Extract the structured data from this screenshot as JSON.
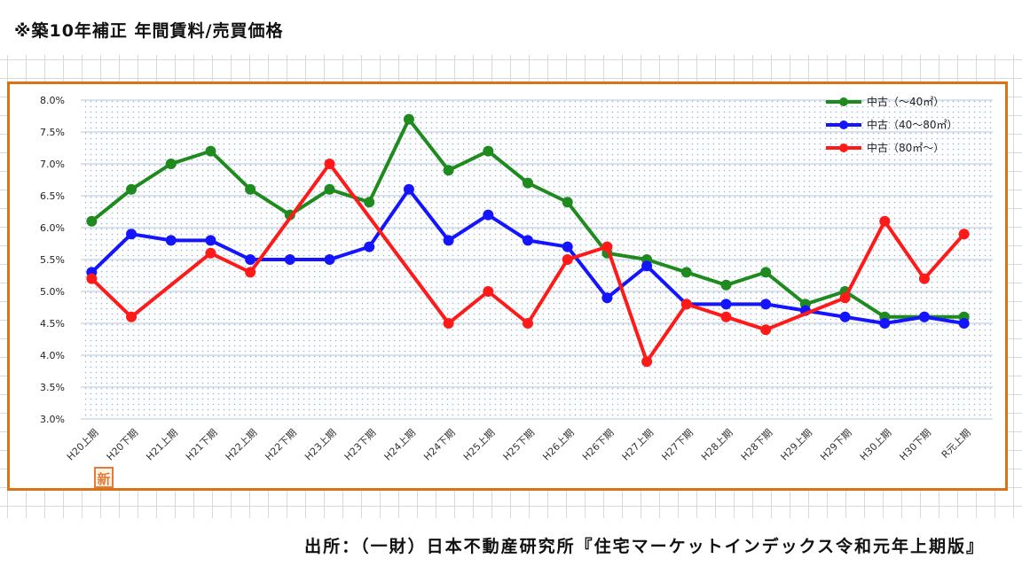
{
  "title": "※築10年補正 年間賃料/売買価格",
  "source": "出所：（一財）日本不動産研究所『住宅マーケットインデックス令和元年上期版』",
  "badge": "新",
  "chart_data": {
    "type": "line",
    "categories": [
      "H20上期",
      "H20下期",
      "H21上期",
      "H21下期",
      "H22上期",
      "H22下期",
      "H23上期",
      "H23下期",
      "H24上期",
      "H24下期",
      "H25上期",
      "H25下期",
      "H26上期",
      "H26下期",
      "H27上期",
      "H27下期",
      "H28上期",
      "H28下期",
      "H29上期",
      "H29下期",
      "H30上期",
      "H30下期",
      "R元上期"
    ],
    "ylim": [
      3.0,
      8.0
    ],
    "yticks": [
      "3.0%",
      "3.5%",
      "4.0%",
      "4.5%",
      "5.0%",
      "5.5%",
      "6.0%",
      "6.5%",
      "7.0%",
      "7.5%",
      "8.0%"
    ],
    "grid": true,
    "legend_position": "top-right",
    "series": [
      {
        "name": "中古（～40㎡）",
        "color": "#1f8b1f",
        "values": [
          6.1,
          6.6,
          7.0,
          7.2,
          6.6,
          6.2,
          6.6,
          6.4,
          7.7,
          6.9,
          7.2,
          6.7,
          6.4,
          5.6,
          5.5,
          5.3,
          5.1,
          5.3,
          4.8,
          5.0,
          4.6,
          4.6,
          4.6
        ]
      },
      {
        "name": "中古（40～80㎡）",
        "color": "#1414ff",
        "values": [
          5.3,
          5.9,
          5.8,
          5.8,
          5.5,
          5.5,
          5.5,
          5.7,
          6.6,
          5.8,
          6.2,
          5.8,
          5.7,
          4.9,
          5.4,
          4.8,
          4.8,
          4.8,
          4.7,
          4.6,
          4.5,
          4.6,
          4.5
        ]
      },
      {
        "name": "中古（80㎡～）",
        "color": "#ff1a1a",
        "values": [
          5.2,
          4.6,
          null,
          5.6,
          5.3,
          null,
          7.0,
          null,
          null,
          4.5,
          5.0,
          4.5,
          5.5,
          5.7,
          3.9,
          4.8,
          4.6,
          4.4,
          null,
          4.9,
          6.1,
          5.2,
          5.9
        ]
      }
    ]
  }
}
